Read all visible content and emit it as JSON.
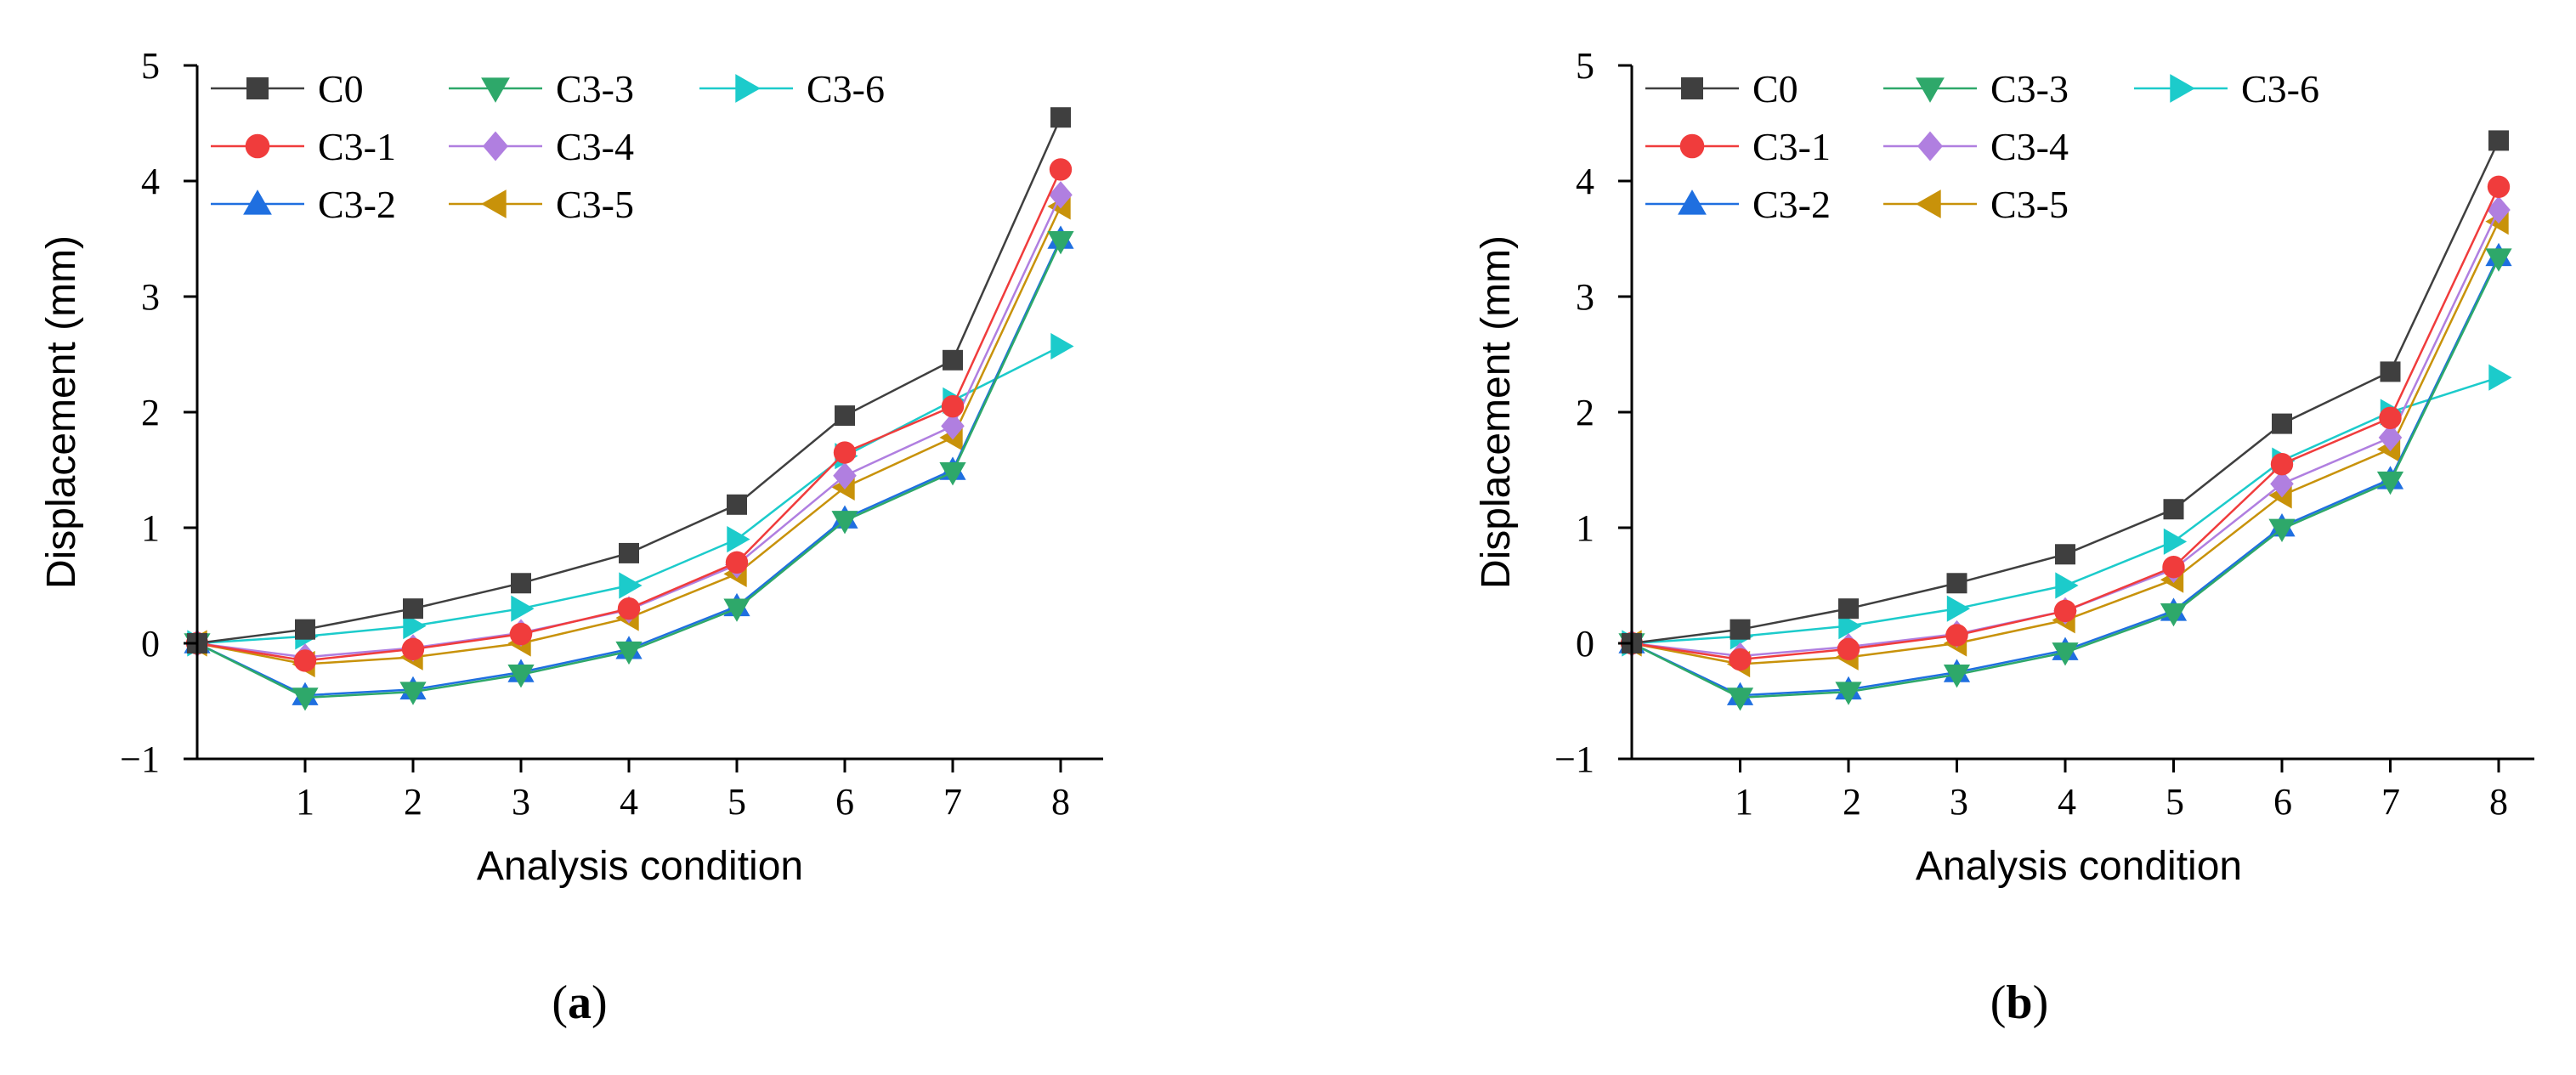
{
  "chart_data": [
    {
      "type": "line",
      "panel_label": "a",
      "title": "",
      "xlabel": "Analysis condition",
      "ylabel": "Displacement  (mm)",
      "xlim": [
        0,
        8
      ],
      "ylim": [
        -1,
        5
      ],
      "x": [
        0,
        1,
        2,
        3,
        4,
        5,
        6,
        7,
        8
      ],
      "x_tick_labels": [
        "1",
        "2",
        "3",
        "4",
        "5",
        "6",
        "7",
        "8"
      ],
      "y_tick_labels": [
        "−1",
        "0",
        "1",
        "2",
        "3",
        "4",
        "5"
      ],
      "legend_position": "top-left",
      "series": [
        {
          "name": "C0",
          "color": "#3f3f3f",
          "marker": "square",
          "values": [
            0,
            0.12,
            0.3,
            0.52,
            0.78,
            1.2,
            1.97,
            2.45,
            4.55
          ]
        },
        {
          "name": "C3-1",
          "color": "#f03c3c",
          "marker": "circle",
          "values": [
            0,
            -0.15,
            -0.05,
            0.08,
            0.3,
            0.7,
            1.65,
            2.05,
            4.1
          ]
        },
        {
          "name": "C3-2",
          "color": "#1f6fe0",
          "marker": "triangle-up",
          "values": [
            0,
            -0.45,
            -0.4,
            -0.25,
            -0.05,
            0.32,
            1.08,
            1.5,
            3.5
          ]
        },
        {
          "name": "C3-3",
          "color": "#2ea86a",
          "marker": "triangle-down",
          "values": [
            0,
            -0.47,
            -0.42,
            -0.27,
            -0.07,
            0.3,
            1.06,
            1.48,
            3.48
          ]
        },
        {
          "name": "C3-4",
          "color": "#b07fe0",
          "marker": "diamond",
          "values": [
            0,
            -0.12,
            -0.04,
            0.09,
            0.29,
            0.68,
            1.45,
            1.88,
            3.88
          ]
        },
        {
          "name": "C3-5",
          "color": "#c8920a",
          "marker": "triangle-left",
          "values": [
            0,
            -0.18,
            -0.12,
            0.0,
            0.22,
            0.6,
            1.35,
            1.78,
            3.78
          ]
        },
        {
          "name": "C3-6",
          "color": "#1ccbcb",
          "marker": "triangle-right",
          "values": [
            0,
            0.06,
            0.15,
            0.3,
            0.5,
            0.9,
            1.62,
            2.1,
            2.57
          ]
        }
      ]
    },
    {
      "type": "line",
      "panel_label": "b",
      "title": "",
      "xlabel": "Analysis condition",
      "ylabel": "Displacement  (mm)",
      "xlim": [
        0,
        8
      ],
      "ylim": [
        -1,
        5
      ],
      "x": [
        0,
        1,
        2,
        3,
        4,
        5,
        6,
        7,
        8
      ],
      "x_tick_labels": [
        "1",
        "2",
        "3",
        "4",
        "5",
        "6",
        "7",
        "8"
      ],
      "y_tick_labels": [
        "−1",
        "0",
        "1",
        "2",
        "3",
        "4",
        "5"
      ],
      "legend_position": "top-left",
      "series": [
        {
          "name": "C0",
          "color": "#3f3f3f",
          "marker": "square",
          "values": [
            0,
            0.12,
            0.3,
            0.52,
            0.77,
            1.16,
            1.9,
            2.35,
            4.35
          ]
        },
        {
          "name": "C3-1",
          "color": "#f03c3c",
          "marker": "circle",
          "values": [
            0,
            -0.14,
            -0.05,
            0.07,
            0.28,
            0.66,
            1.55,
            1.95,
            3.95
          ]
        },
        {
          "name": "C3-2",
          "color": "#1f6fe0",
          "marker": "triangle-up",
          "values": [
            0,
            -0.45,
            -0.4,
            -0.25,
            -0.06,
            0.28,
            1.01,
            1.42,
            3.35
          ]
        },
        {
          "name": "C3-3",
          "color": "#2ea86a",
          "marker": "triangle-down",
          "values": [
            0,
            -0.47,
            -0.42,
            -0.27,
            -0.08,
            0.26,
            0.99,
            1.4,
            3.33
          ]
        },
        {
          "name": "C3-4",
          "color": "#b07fe0",
          "marker": "diamond",
          "values": [
            0,
            -0.11,
            -0.03,
            0.08,
            0.28,
            0.64,
            1.38,
            1.78,
            3.75
          ]
        },
        {
          "name": "C3-5",
          "color": "#c8920a",
          "marker": "triangle-left",
          "values": [
            0,
            -0.18,
            -0.12,
            0.0,
            0.2,
            0.55,
            1.28,
            1.68,
            3.65
          ]
        },
        {
          "name": "C3-6",
          "color": "#1ccbcb",
          "marker": "triangle-right",
          "values": [
            0,
            0.06,
            0.15,
            0.3,
            0.5,
            0.88,
            1.58,
            2.0,
            2.3
          ]
        }
      ]
    }
  ]
}
